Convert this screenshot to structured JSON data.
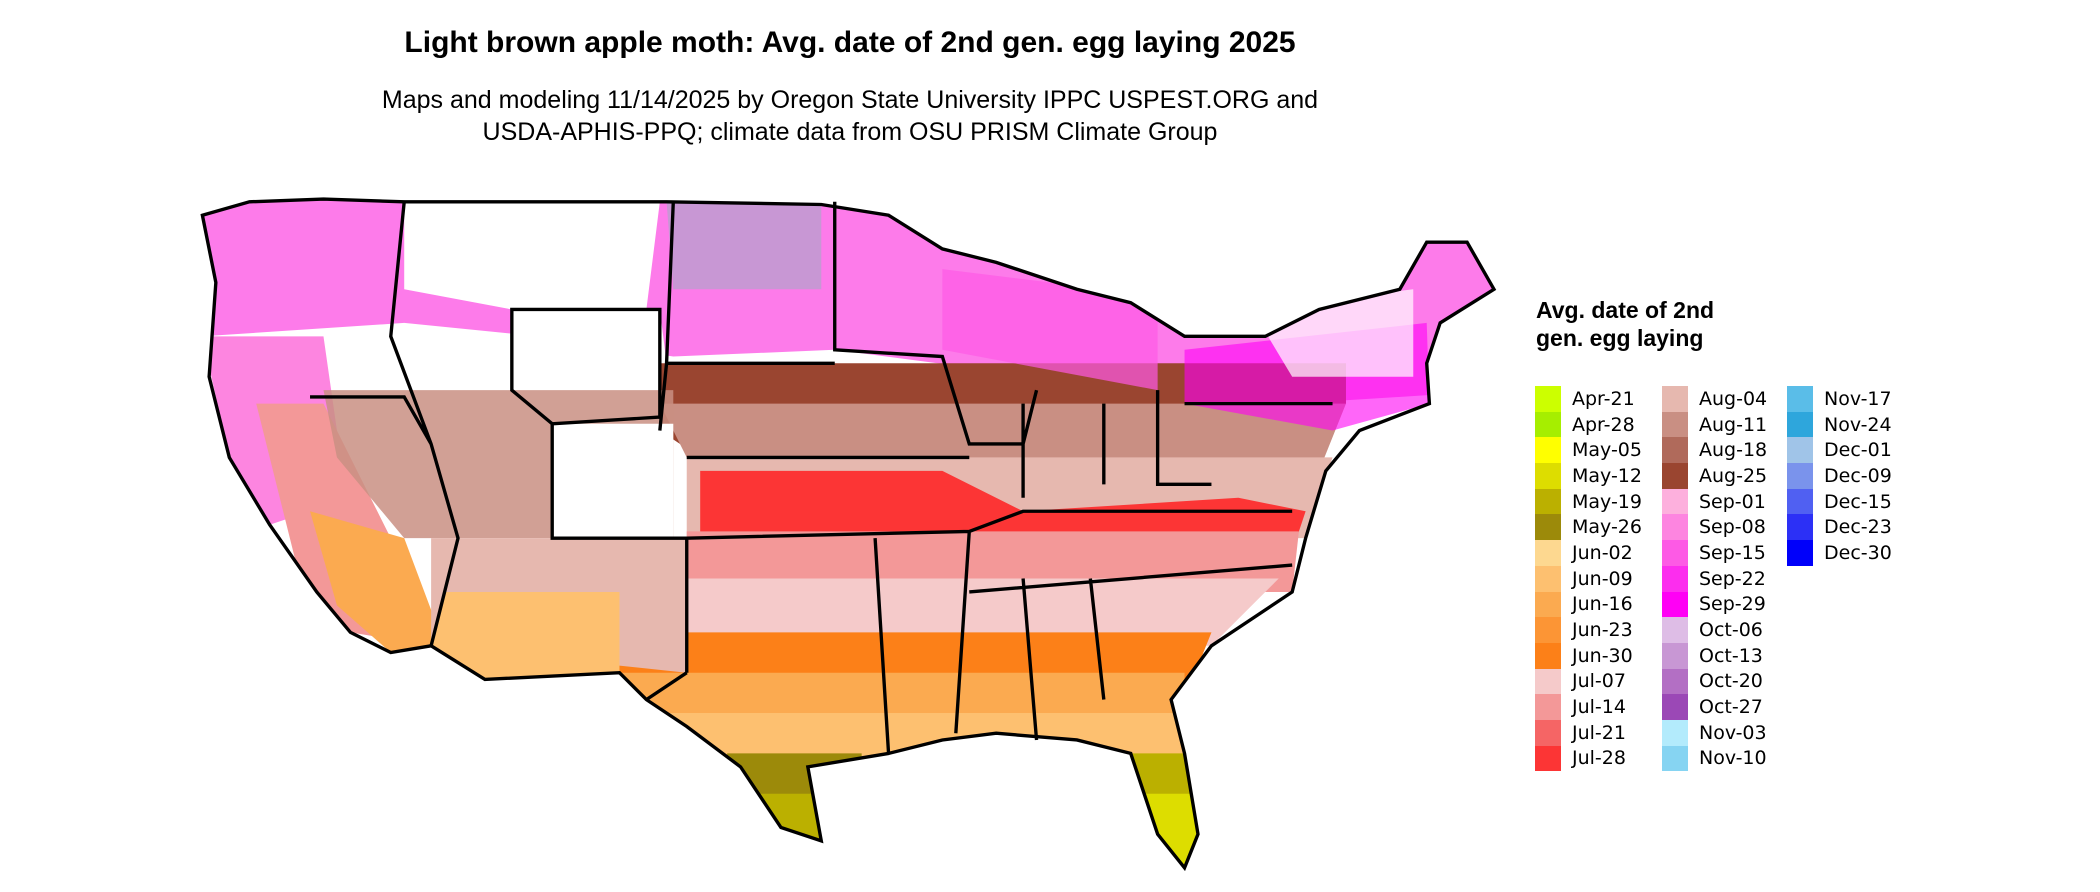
{
  "title": "Light brown apple moth: Avg. date of 2nd gen. egg laying 2025",
  "subtitle_line1": "Maps and modeling 11/14/2025 by Oregon State University IPPC USPEST.ORG and",
  "subtitle_line2": "USDA-APHIS-PPQ; climate data from OSU PRISM Climate Group",
  "legend": {
    "title": "Avg. date of 2nd gen. egg laying",
    "columns": [
      [
        {
          "label": "Apr-21",
          "color": "#CCFF00"
        },
        {
          "label": "Apr-28",
          "color": "#A6EE00"
        },
        {
          "label": "May-05",
          "color": "#FFFF00"
        },
        {
          "label": "May-12",
          "color": "#DDDD00"
        },
        {
          "label": "May-19",
          "color": "#BBB000"
        },
        {
          "label": "May-26",
          "color": "#9C8A0A"
        },
        {
          "label": "Jun-02",
          "color": "#FDD890"
        },
        {
          "label": "Jun-09",
          "color": "#FDC070"
        },
        {
          "label": "Jun-16",
          "color": "#FBAA50"
        },
        {
          "label": "Jun-23",
          "color": "#FC9535"
        },
        {
          "label": "Jun-30",
          "color": "#FC8018"
        },
        {
          "label": "Jul-07",
          "color": "#F5CACA"
        },
        {
          "label": "Jul-14",
          "color": "#F39898"
        },
        {
          "label": "Jul-21",
          "color": "#F56565"
        },
        {
          "label": "Jul-28",
          "color": "#FC3535"
        }
      ],
      [
        {
          "label": "Aug-04",
          "color": "#E6B8AF"
        },
        {
          "label": "Aug-11",
          "color": "#C98F83"
        },
        {
          "label": "Aug-18",
          "color": "#B06A5B"
        },
        {
          "label": "Aug-25",
          "color": "#9A4530"
        },
        {
          "label": "Sep-01",
          "color": "#FDB0DD"
        },
        {
          "label": "Sep-08",
          "color": "#FD85E0"
        },
        {
          "label": "Sep-15",
          "color": "#FD5AE5"
        },
        {
          "label": "Sep-22",
          "color": "#FC2DEE"
        },
        {
          "label": "Sep-29",
          "color": "#FF00F5"
        },
        {
          "label": "Oct-06",
          "color": "#DEBDE6"
        },
        {
          "label": "Oct-13",
          "color": "#C897D4"
        },
        {
          "label": "Oct-20",
          "color": "#B36FC4"
        },
        {
          "label": "Oct-27",
          "color": "#9B48B6"
        },
        {
          "label": "Nov-03",
          "color": "#B3EBFC"
        },
        {
          "label": "Nov-10",
          "color": "#86D4F2"
        }
      ],
      [
        {
          "label": "Nov-17",
          "color": "#5ABDE8"
        },
        {
          "label": "Nov-24",
          "color": "#2EA6DC"
        },
        {
          "label": "Dec-01",
          "color": "#A0C4E8"
        },
        {
          "label": "Dec-09",
          "color": "#7A93EC"
        },
        {
          "label": "Dec-15",
          "color": "#5060F2"
        },
        {
          "label": "Dec-23",
          "color": "#2C30F6"
        },
        {
          "label": "Dec-30",
          "color": "#0000FA"
        }
      ]
    ]
  }
}
